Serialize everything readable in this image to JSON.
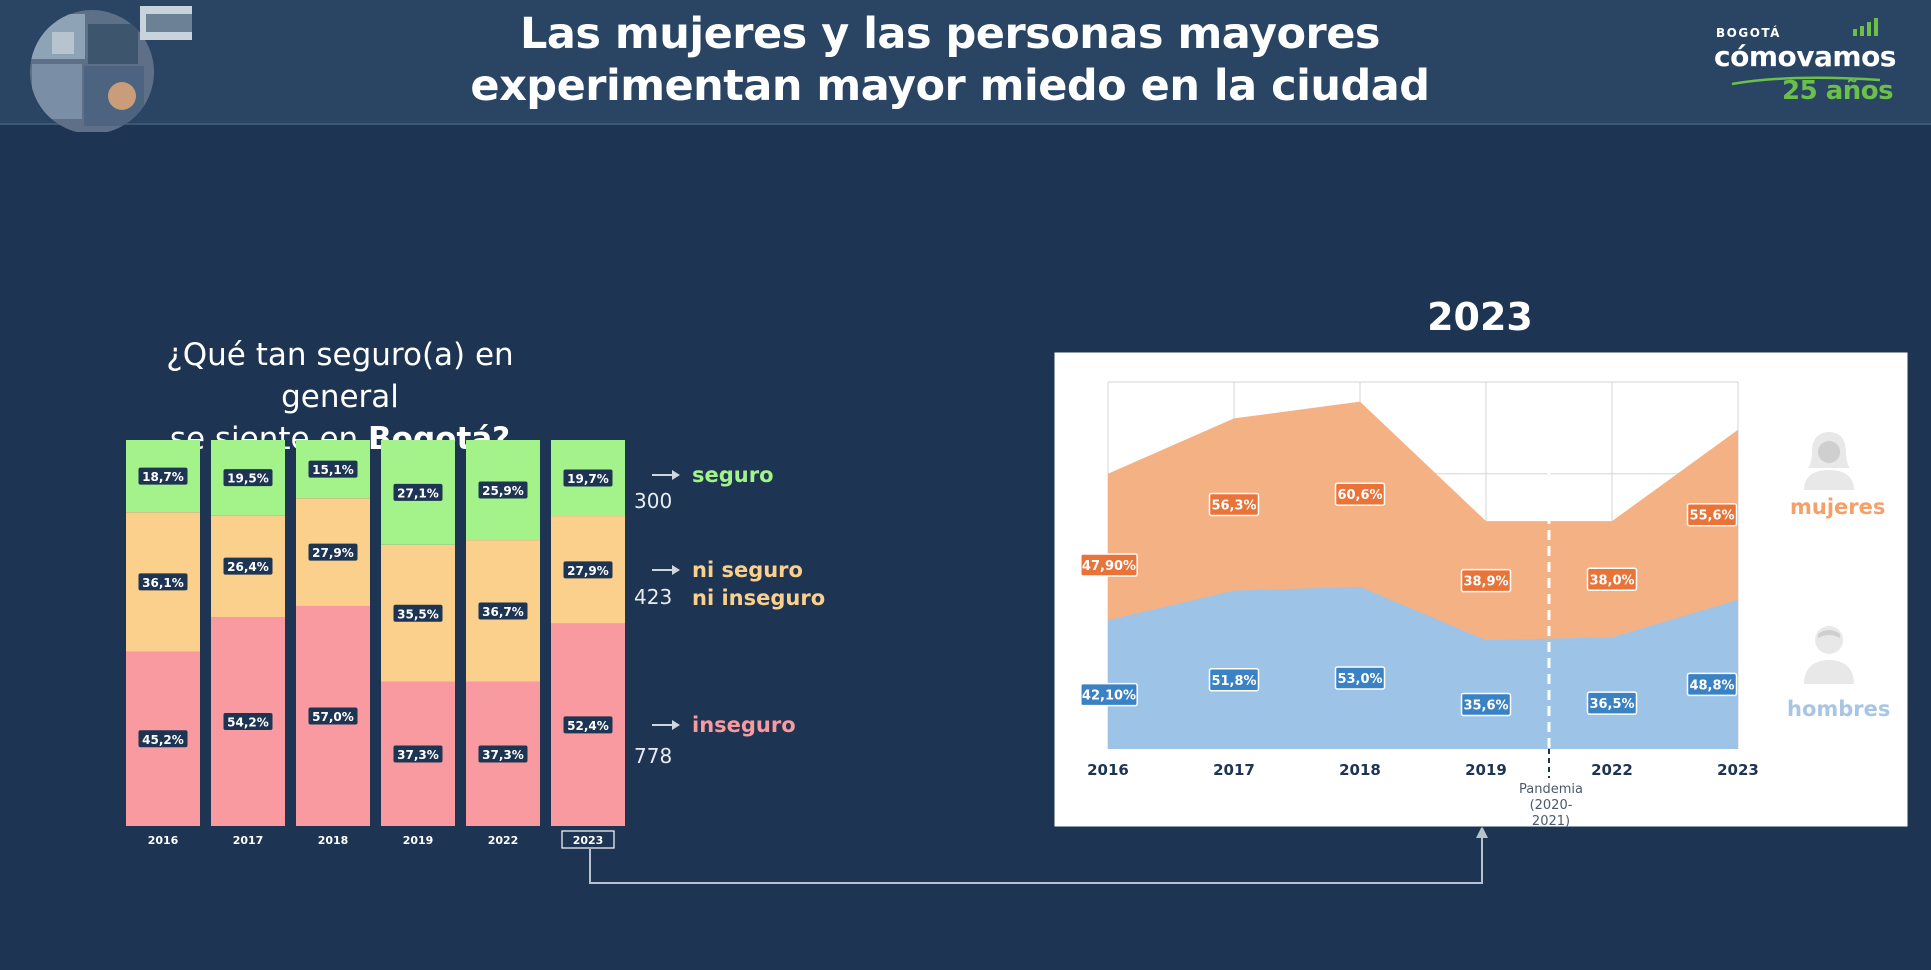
{
  "header": {
    "title_line1": "Las mujeres y las personas mayores",
    "title_line2": "experimentan mayor miedo en la ciudad",
    "logo_top": "BOGOTÁ",
    "logo_brand": "cómovamos",
    "logo_years": "25 años"
  },
  "question": {
    "line1": "¿Qué tan seguro(a) en general",
    "line2_prefix": "se siente en ",
    "line2_bold": "Bogotá?"
  },
  "colors": {
    "seguro": "#a3f28a",
    "ni_seguro": "#fbd08c",
    "inseguro": "#f99aa0",
    "mujeres": "#f4b183",
    "hombres": "#9dc3e6",
    "mujeres_label": "#f4a06a",
    "hombres_label": "#a8c6e4",
    "background": "#1d3452"
  },
  "chart_data": [
    {
      "type": "bar",
      "stacked": true,
      "categories": [
        "2016",
        "2017",
        "2018",
        "2019",
        "2022",
        "2023"
      ],
      "highlighted_category": "2023",
      "series": [
        {
          "name": "inseguro",
          "values": [
            45.2,
            54.2,
            57.0,
            37.3,
            37.3,
            52.4
          ],
          "labels": [
            "45,2%",
            "54,2%",
            "57,0%",
            "37,3%",
            "37,3%",
            "52,4%"
          ]
        },
        {
          "name": "ni seguro ni inseguro",
          "values": [
            36.1,
            26.4,
            27.9,
            35.5,
            36.7,
            27.9
          ],
          "labels": [
            "36,1%",
            "26,4%",
            "27,9%",
            "35,5%",
            "36,7%",
            "27,9%"
          ]
        },
        {
          "name": "seguro",
          "values": [
            18.7,
            19.5,
            15.1,
            27.1,
            25.9,
            19.7
          ],
          "labels": [
            "18,7%",
            "19,5%",
            "15,1%",
            "27,1%",
            "25,9%",
            "19,7%"
          ]
        }
      ],
      "legend": [
        {
          "label": "seguro",
          "count": "300"
        },
        {
          "label_line1": "ni seguro",
          "label_line2": "ni inseguro",
          "count": "423"
        },
        {
          "label": "inseguro",
          "count": "778"
        }
      ],
      "ylim": [
        0,
        100
      ]
    },
    {
      "type": "area",
      "title": "2023",
      "x": [
        "2016",
        "2017",
        "2018",
        "2019",
        "2022",
        "2023"
      ],
      "series": [
        {
          "name": "mujeres",
          "values": [
            47.9,
            56.3,
            60.6,
            38.9,
            38.0,
            55.6
          ],
          "labels": [
            "47,90%",
            "56,3%",
            "60,6%",
            "38,9%",
            "38,0%",
            "55,6%"
          ]
        },
        {
          "name": "hombres",
          "values": [
            42.1,
            51.8,
            53.0,
            35.6,
            36.5,
            48.8
          ],
          "labels": [
            "42,10%",
            "51,8%",
            "53,0%",
            "35,6%",
            "36,5%",
            "48,8%"
          ]
        }
      ],
      "annotation": {
        "after": "2019",
        "line1": "Pandemia",
        "line2": "(2020-",
        "line3": "2021)"
      },
      "grid": true
    }
  ]
}
